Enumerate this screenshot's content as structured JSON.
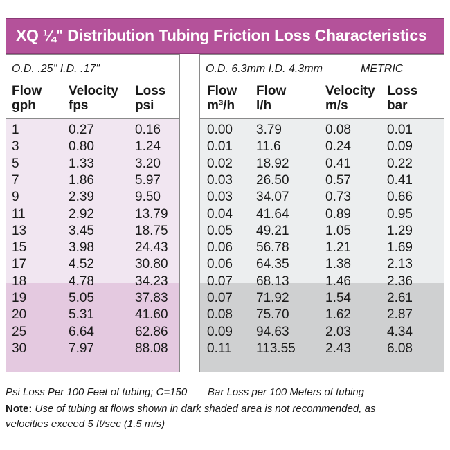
{
  "title": "XQ ¼\" Distribution Tubing Friction Loss Characteristics",
  "colors": {
    "title_bg": "#b4529a",
    "light_purple": "#f1e6f1",
    "dark_purple": "#e4c9e0",
    "light_gray": "#eceeef",
    "dark_gray": "#cfd0d1"
  },
  "imperial": {
    "spec": "O.D. .25\" I.D. .17\"",
    "headers": [
      [
        "Flow",
        "gph"
      ],
      [
        "Velocity",
        "fps"
      ],
      [
        "Loss",
        "psi"
      ]
    ],
    "rows": [
      [
        "1",
        "0.27",
        "0.16"
      ],
      [
        "3",
        "0.80",
        "1.24"
      ],
      [
        "5",
        "1.33",
        "3.20"
      ],
      [
        "7",
        "1.86",
        "5.97"
      ],
      [
        "9",
        "2.39",
        "9.50"
      ],
      [
        "11",
        "2.92",
        "13.79"
      ],
      [
        "13",
        "3.45",
        "18.75"
      ],
      [
        "15",
        "3.98",
        "24.43"
      ],
      [
        "17",
        "4.52",
        "30.80"
      ],
      [
        "18",
        "4.78",
        "34.23"
      ],
      [
        "19",
        "5.05",
        "37.83"
      ],
      [
        "20",
        "5.31",
        "41.60"
      ],
      [
        "25",
        "6.64",
        "62.86"
      ],
      [
        "30",
        "7.97",
        "88.08"
      ]
    ]
  },
  "metric": {
    "spec": "O.D. 6.3mm I.D. 4.3mm",
    "label": "METRIC",
    "headers": [
      [
        "Flow",
        "m³/h"
      ],
      [
        "Flow",
        "l/h"
      ],
      [
        "Velocity",
        "m/s"
      ],
      [
        "Loss",
        "bar"
      ]
    ],
    "rows": [
      [
        "0.00",
        "3.79",
        "0.08",
        "0.01"
      ],
      [
        "0.01",
        "11.6",
        "0.24",
        "0.09"
      ],
      [
        "0.02",
        "18.92",
        "0.41",
        "0.22"
      ],
      [
        "0.03",
        "26.50",
        "0.57",
        "0.41"
      ],
      [
        "0.03",
        "34.07",
        "0.73",
        "0.66"
      ],
      [
        "0.04",
        "41.64",
        "0.89",
        "0.95"
      ],
      [
        "0.05",
        "49.21",
        "1.05",
        "1.29"
      ],
      [
        "0.06",
        "56.78",
        "1.21",
        "1.69"
      ],
      [
        "0.06",
        "64.35",
        "1.38",
        "2.13"
      ],
      [
        "0.07",
        "68.13",
        "1.46",
        "2.36"
      ],
      [
        "0.07",
        "71.92",
        "1.54",
        "2.61"
      ],
      [
        "0.08",
        "75.70",
        "1.62",
        "2.87"
      ],
      [
        "0.09",
        "94.63",
        "2.03",
        "4.34"
      ],
      [
        "0.11",
        "113.55",
        "2.43",
        "6.08"
      ]
    ]
  },
  "footer": {
    "psi_note": "Psi Loss Per 100 Feet of tubing; C=150",
    "bar_note": "Bar Loss per 100 Meters of tubing",
    "note_label": "Note:",
    "note_text": "Use of tubing at flows shown in dark shaded area is not recommended, as velocities exceed 5 ft/sec (1.5 m/s)"
  }
}
